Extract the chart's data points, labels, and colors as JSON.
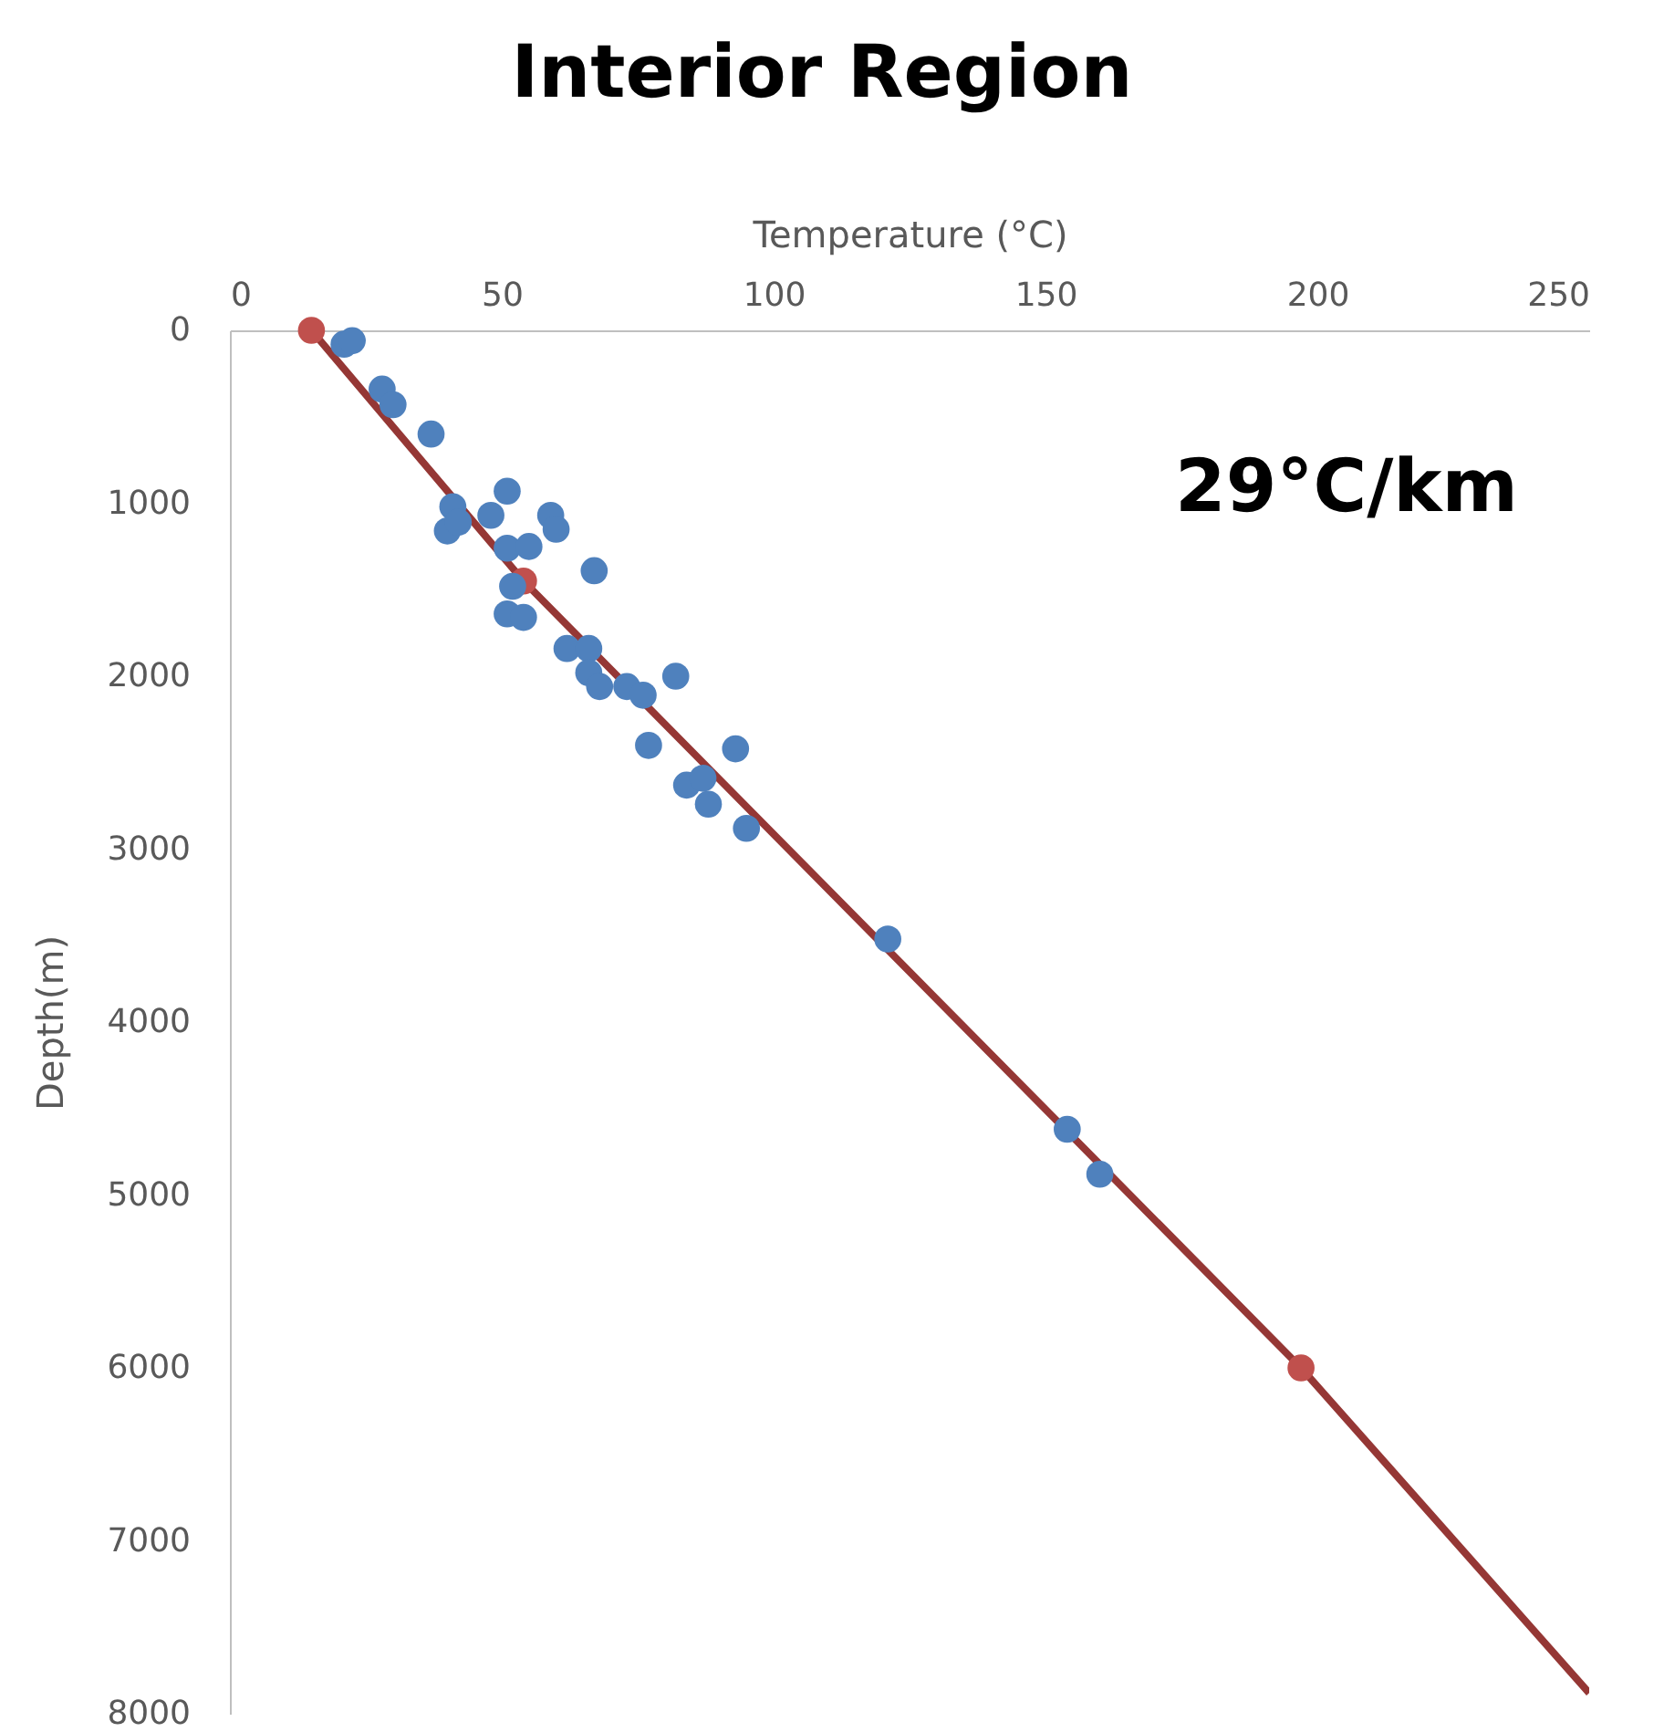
{
  "chart_data": {
    "type": "scatter",
    "title": "Interior Region",
    "xlabel": "Temperature (°C)",
    "ylabel": "Depth(m)",
    "xlim": [
      0,
      250
    ],
    "xticks": [
      0,
      50,
      100,
      150,
      200,
      250
    ],
    "ylim": [
      8000,
      0
    ],
    "yticks": [
      0,
      1000,
      2000,
      3000,
      4000,
      5000,
      6000,
      7000,
      8000
    ],
    "grid": false,
    "annotations": [
      "29°C/km"
    ],
    "series": [
      {
        "type": "line",
        "color": "#953735",
        "line_style": "solid",
        "x": [
          15,
          54,
          197,
          250
        ],
        "values": [
          0,
          1450,
          6000,
          7880
        ]
      },
      {
        "marker": "circle",
        "color": "#c0504d",
        "x": [
          15,
          54,
          197
        ],
        "values": [
          0,
          1450,
          6000
        ]
      },
      {
        "marker": "circle",
        "color": "#4f81bd",
        "x": [
          21,
          22.5,
          28,
          30,
          37,
          41,
          51,
          48,
          40,
          42,
          51,
          55,
          59,
          60,
          67,
          52,
          51,
          54,
          62,
          66,
          66,
          68,
          73,
          76,
          82,
          77,
          93,
          84,
          87,
          88,
          95,
          121,
          154,
          160
        ],
        "values": [
          80,
          60,
          340,
          430,
          600,
          1020,
          930,
          1070,
          1160,
          1110,
          1260,
          1250,
          1070,
          1150,
          1390,
          1480,
          1640,
          1660,
          1840,
          1840,
          1980,
          2060,
          2060,
          2110,
          2000,
          2400,
          2420,
          2630,
          2590,
          2740,
          2880,
          3520,
          4620,
          4880
        ]
      }
    ]
  }
}
